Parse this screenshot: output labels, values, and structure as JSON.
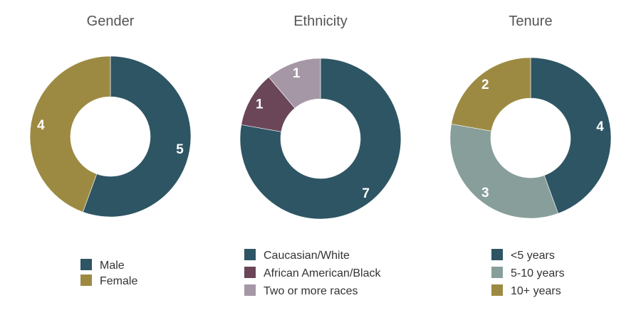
{
  "chart_data": [
    {
      "type": "pie",
      "title": "Gender",
      "categories": [
        "Male",
        "Female"
      ],
      "values": [
        5,
        4
      ],
      "colors": [
        "#2e5564",
        "#9d8a42"
      ],
      "legend": "bottom"
    },
    {
      "type": "pie",
      "title": "Ethnicity",
      "categories": [
        "Caucasian/White",
        "African American/Black",
        "Two or more races"
      ],
      "values": [
        7,
        1,
        1
      ],
      "colors": [
        "#2e5564",
        "#6b4558",
        "#a697a6"
      ],
      "legend": "bottom"
    },
    {
      "type": "pie",
      "title": "Tenure",
      "categories": [
        "<5 years",
        "5-10 years",
        "10+ years"
      ],
      "values": [
        4,
        3,
        2
      ],
      "colors": [
        "#2e5564",
        "#879e9a",
        "#9d8a42"
      ],
      "legend": "bottom"
    }
  ]
}
